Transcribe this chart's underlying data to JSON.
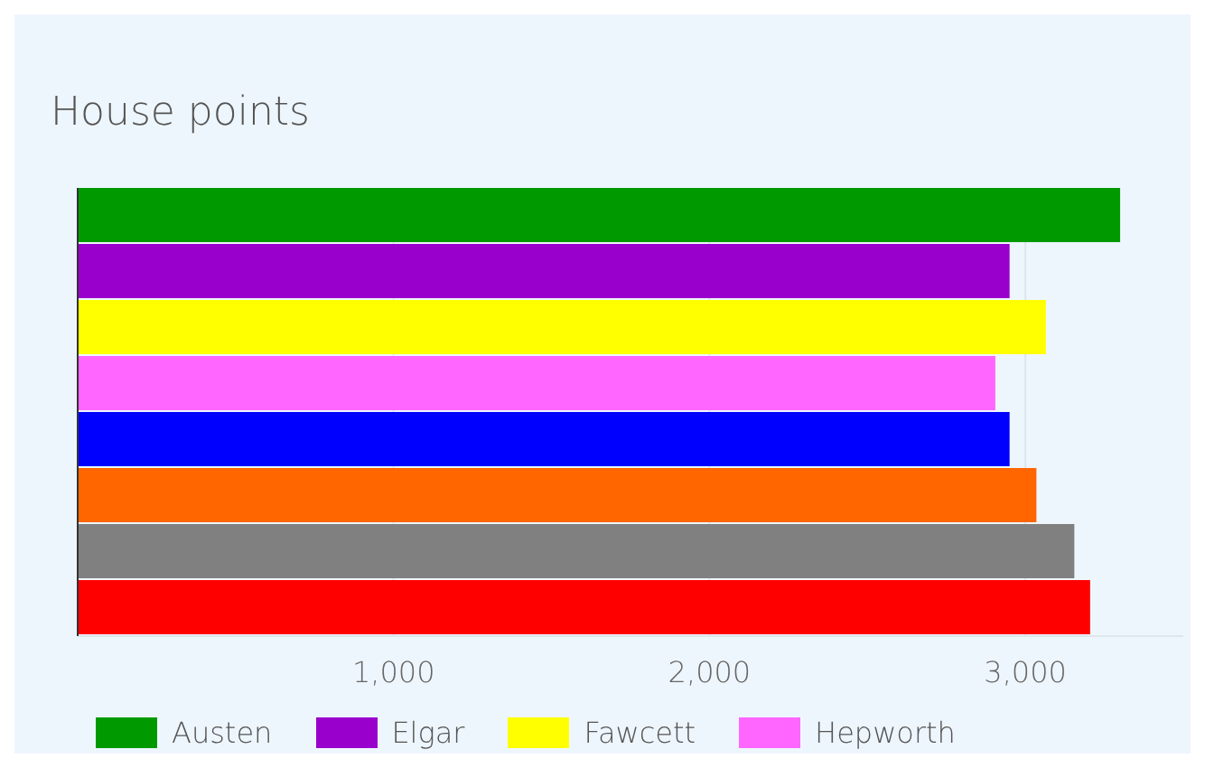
{
  "chart_data": {
    "type": "bar",
    "orientation": "horizontal",
    "title": "House points",
    "categories": [
      null
    ],
    "series": [
      {
        "name": "Austen",
        "color": "#009900",
        "values": [
          3300
        ]
      },
      {
        "name": "Elgar",
        "color": "#9900cc",
        "values": [
          2950
        ]
      },
      {
        "name": "Fawcett",
        "color": "#ffff00",
        "values": [
          3065
        ]
      },
      {
        "name": "Hepworth",
        "color": "#ff66ff",
        "values": [
          2905
        ]
      },
      {
        "color": "#0000ff",
        "values": [
          2950
        ]
      },
      {
        "color": "#ff6600",
        "values": [
          3035
        ]
      },
      {
        "color": "#808080",
        "values": [
          3155
        ]
      },
      {
        "color": "#ff0000",
        "values": [
          3205
        ]
      }
    ],
    "xlim": [
      0,
      3500
    ],
    "xticks": [
      {
        "value": 1000,
        "label": "1,000"
      },
      {
        "value": 2000,
        "label": "2,000"
      },
      {
        "value": 3000,
        "label": "3,000"
      }
    ],
    "grid": "x",
    "legend": "bottom left"
  }
}
